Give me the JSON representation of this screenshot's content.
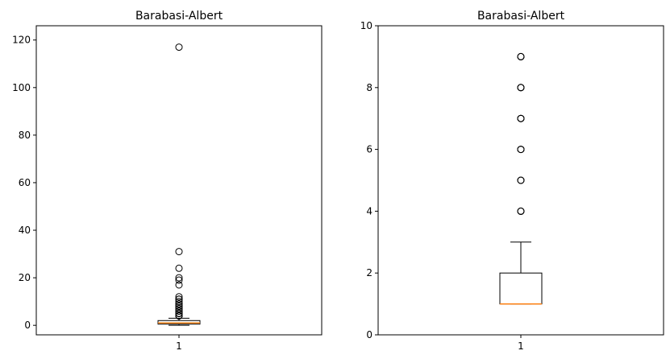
{
  "chart_data": [
    {
      "type": "boxplot",
      "title": "Barabasi-Albert",
      "xlabel": "",
      "ylabel": "",
      "categories": [
        "1"
      ],
      "ylim": [
        -4,
        126
      ],
      "yticks": [
        0,
        20,
        40,
        60,
        80,
        100,
        120
      ],
      "box": {
        "whislo": 0,
        "q1": 0.5,
        "med": 1,
        "q3": 2,
        "whishi": 3
      },
      "outliers": [
        4,
        4,
        4,
        4,
        4,
        5,
        5,
        5,
        5,
        6,
        6,
        6,
        7,
        7,
        7,
        8,
        8,
        9,
        9,
        10,
        11,
        11,
        12,
        17,
        19,
        20,
        24,
        31,
        117
      ],
      "colors": {
        "box": "#000000",
        "median": "#ff7f0e"
      }
    },
    {
      "type": "boxplot",
      "title": "Barabasi-Albert",
      "xlabel": "",
      "ylabel": "",
      "categories": [
        "1"
      ],
      "ylim": [
        0,
        10
      ],
      "yticks": [
        0,
        2,
        4,
        6,
        8,
        10
      ],
      "box": {
        "whislo": 1,
        "q1": 1,
        "med": 1,
        "q3": 2,
        "whishi": 3
      },
      "outliers": [
        4,
        4,
        4,
        5,
        5,
        5,
        6,
        6,
        6,
        7,
        7,
        7,
        8,
        8,
        8,
        9,
        9,
        9
      ],
      "colors": {
        "box": "#000000",
        "median": "#ff7f0e"
      }
    }
  ]
}
